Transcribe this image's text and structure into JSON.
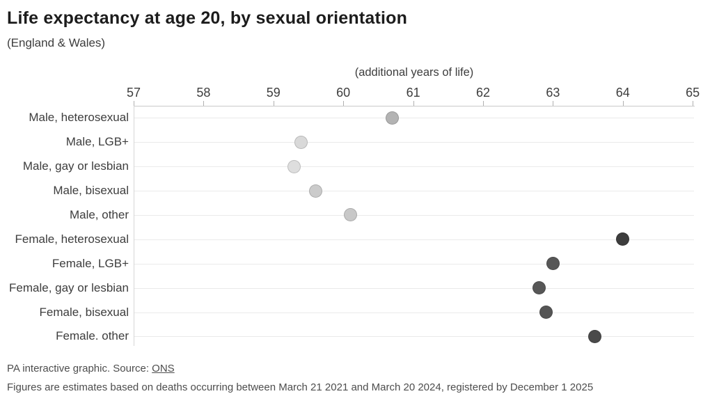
{
  "chart": {
    "title": "Life expectancy at age 20, by sexual orientation",
    "subtitle": "(England & Wales)",
    "axis_label": "(additional years of life)"
  },
  "chart_data": {
    "type": "scatter",
    "subtype": "horizontal-dot-plot",
    "title": "Life expectancy at age 20, by sexual orientation",
    "subtitle": "(England & Wales)",
    "xlabel": "(additional years of life)",
    "ylabel": "",
    "xlim": [
      57,
      65
    ],
    "x_ticks": [
      57,
      58,
      59,
      60,
      61,
      62,
      63,
      64,
      65
    ],
    "grid": "horizontal row gridlines on, light gray",
    "legend": "none",
    "categories": [
      "Male, heterosexual",
      "Male, LGB+",
      "Male, gay or lesbian",
      "Male, bisexual",
      "Male, other",
      "Female, heterosexual",
      "Female, LGB+",
      "Female, gay or lesbian",
      "Female, bisexual",
      "Female. other"
    ],
    "values": [
      60.7,
      59.4,
      59.3,
      59.6,
      60.1,
      64.0,
      63.0,
      62.8,
      62.9,
      63.6
    ],
    "rows": [
      {
        "label": "Male, heterosexual",
        "value": 60.7,
        "color": "#b3b3b3"
      },
      {
        "label": "Male, LGB+",
        "value": 59.4,
        "color": "#d9d9d9"
      },
      {
        "label": "Male, gay or lesbian",
        "value": 59.3,
        "color": "#dedede"
      },
      {
        "label": "Male, bisexual",
        "value": 59.6,
        "color": "#cbcbcb"
      },
      {
        "label": "Male, other",
        "value": 60.1,
        "color": "#c8c8c8"
      },
      {
        "label": "Female, heterosexual",
        "value": 64.0,
        "color": "#3d3d3d"
      },
      {
        "label": "Female, LGB+",
        "value": 63.0,
        "color": "#575757"
      },
      {
        "label": "Female, gay or lesbian",
        "value": 62.8,
        "color": "#575757"
      },
      {
        "label": "Female, bisexual",
        "value": 62.9,
        "color": "#555555"
      },
      {
        "label": "Female. other",
        "value": 63.6,
        "color": "#4a4a4a"
      }
    ]
  },
  "colors": {
    "title_text": "#1c1c1c",
    "body_text": "#3d3d3d",
    "footer_text": "#4d4d4d",
    "axis_line": "#c9c9c9",
    "gridline": "#eaeaea",
    "male_dots": "light gray",
    "female_dots": "dark gray"
  },
  "footer": {
    "credit_prefix": "PA interactive graphic. Source: ",
    "source_link": "ONS",
    "note": "Figures are estimates based on deaths occurring between March 21 2021 and March 20 2024, registered by December 1 2025"
  }
}
